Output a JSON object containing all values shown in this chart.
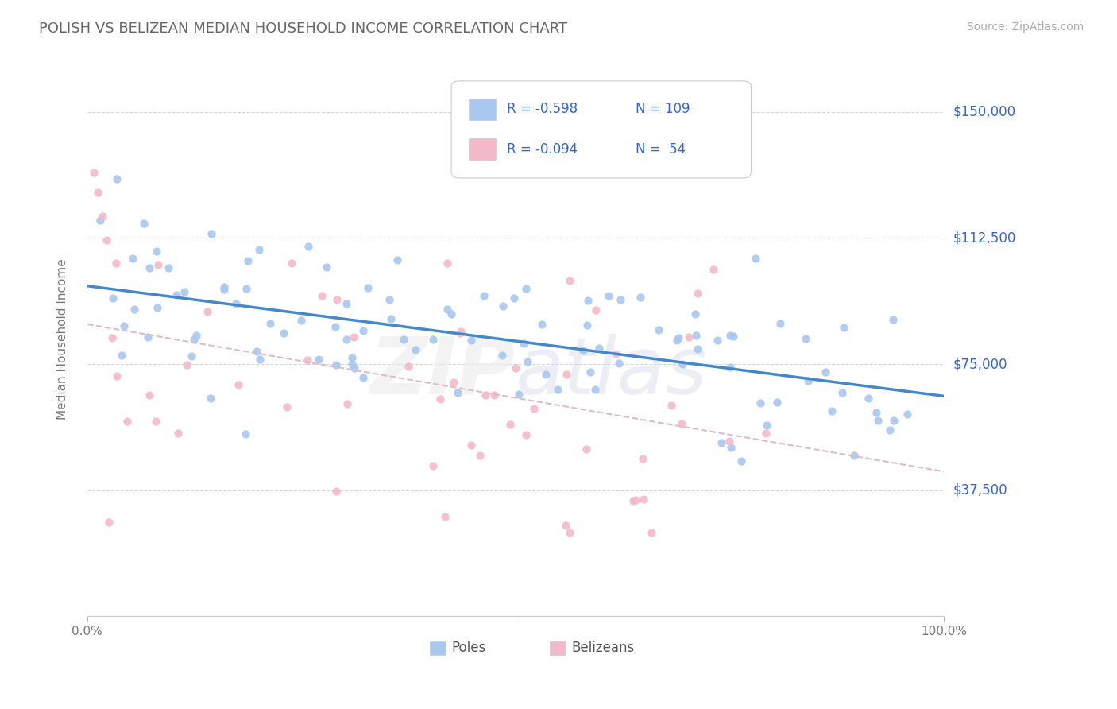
{
  "title": "POLISH VS BELIZEAN MEDIAN HOUSEHOLD INCOME CORRELATION CHART",
  "source": "Source: ZipAtlas.com",
  "ylabel": "Median Household Income",
  "legend_labels": [
    "Poles",
    "Belizeans"
  ],
  "legend_R": [
    -0.598,
    -0.094
  ],
  "legend_N": [
    109,
    54
  ],
  "xlim": [
    0.0,
    1.0
  ],
  "ylim": [
    0,
    165000
  ],
  "yticks": [
    0,
    37500,
    75000,
    112500,
    150000
  ],
  "ytick_labels": [
    "",
    "$37,500",
    "$75,000",
    "$112,500",
    "$150,000"
  ],
  "background_color": "#ffffff",
  "grid_color": "#cccccc",
  "scatter_color_poles": "#a8c8f0",
  "scatter_color_belizeans": "#f4b8c8",
  "line_color_poles": "#4488cc",
  "line_color_belizeans": "#ddbbcc",
  "legend_text_color": "#3366cc",
  "right_label_color": "#3366cc",
  "watermark": "ZIPatlas",
  "seed": 42
}
